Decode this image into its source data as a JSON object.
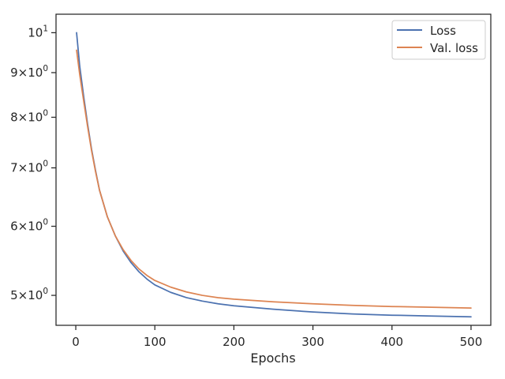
{
  "chart_data": {
    "type": "line",
    "title": "",
    "xlabel": "Epochs",
    "ylabel": "",
    "yscale": "log",
    "xlim": [
      -25,
      525
    ],
    "ylim": [
      4.62,
      10.5
    ],
    "grid": false,
    "legend_position": "top-right",
    "x_ticks": [
      {
        "value": 0,
        "label": "0"
      },
      {
        "value": 100,
        "label": "100"
      },
      {
        "value": 200,
        "label": "200"
      },
      {
        "value": 300,
        "label": "300"
      },
      {
        "value": 400,
        "label": "400"
      },
      {
        "value": 500,
        "label": "500"
      }
    ],
    "y_ticks": [
      {
        "value": 5,
        "mantissa": "5",
        "base": "10",
        "exp": "0"
      },
      {
        "value": 6,
        "mantissa": "6",
        "base": "10",
        "exp": "0"
      },
      {
        "value": 7,
        "mantissa": "7",
        "base": "10",
        "exp": "0"
      },
      {
        "value": 8,
        "mantissa": "8",
        "base": "10",
        "exp": "0"
      },
      {
        "value": 9,
        "mantissa": "9",
        "base": "10",
        "exp": "0"
      },
      {
        "value": 10,
        "mantissa": "",
        "base": "10",
        "exp": "1"
      }
    ],
    "x": [
      1,
      5,
      10,
      15,
      20,
      25,
      30,
      40,
      50,
      60,
      70,
      80,
      90,
      100,
      120,
      140,
      160,
      180,
      200,
      250,
      300,
      350,
      400,
      450,
      500
    ],
    "series": [
      {
        "name": "Loss",
        "color": "#4c72b0",
        "values": [
          10.0,
          9.15,
          8.45,
          7.85,
          7.35,
          6.95,
          6.6,
          6.15,
          5.85,
          5.62,
          5.45,
          5.32,
          5.22,
          5.14,
          5.04,
          4.97,
          4.925,
          4.89,
          4.865,
          4.82,
          4.785,
          4.76,
          4.745,
          4.735,
          4.725
        ]
      },
      {
        "name": "Val. loss",
        "color": "#dd8452",
        "values": [
          9.55,
          8.95,
          8.35,
          7.8,
          7.32,
          6.93,
          6.6,
          6.15,
          5.85,
          5.64,
          5.48,
          5.36,
          5.27,
          5.2,
          5.11,
          5.045,
          5.0,
          4.97,
          4.95,
          4.915,
          4.89,
          4.87,
          4.855,
          4.845,
          4.835
        ]
      }
    ]
  }
}
